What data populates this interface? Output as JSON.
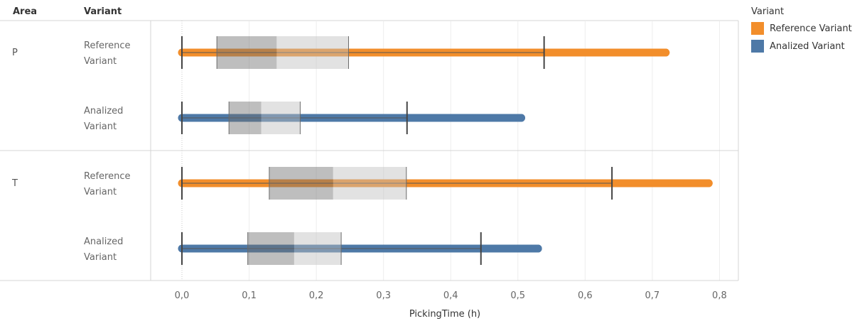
{
  "headers": {
    "area": "Area",
    "variant": "Variant"
  },
  "legend": {
    "title": "Variant",
    "items": [
      {
        "label": "Reference Variant",
        "color": "#f28e2b"
      },
      {
        "label": "Analized Variant",
        "color": "#4e79a7"
      }
    ]
  },
  "chart_data": {
    "type": "box",
    "xlabel": "PickingTime (h)",
    "xlim": [
      -0.048,
      0.82
    ],
    "x_ticks": [
      0.0,
      0.1,
      0.2,
      0.3,
      0.4,
      0.5,
      0.6,
      0.7,
      0.8
    ],
    "x_tick_labels": [
      "0,0",
      "0,1",
      "0,2",
      "0,3",
      "0,4",
      "0,5",
      "0,6",
      "0,7",
      "0,8"
    ],
    "grid": true,
    "legend_position": "right",
    "areas": [
      {
        "area": "P",
        "rows": [
          {
            "variant_line1": "Reference",
            "variant_line2": "Variant",
            "series": "Reference Variant",
            "whisker_low": 0.0,
            "q1": 0.052,
            "median": 0.141,
            "q3": 0.248,
            "whisker_high": 0.539,
            "max": 0.72
          },
          {
            "variant_line1": "Analized",
            "variant_line2": "Variant",
            "series": "Analized Variant",
            "whisker_low": 0.0,
            "q1": 0.07,
            "median": 0.118,
            "q3": 0.176,
            "whisker_high": 0.335,
            "max": 0.505
          }
        ]
      },
      {
        "area": "T",
        "rows": [
          {
            "variant_line1": "Reference",
            "variant_line2": "Variant",
            "series": "Reference Variant",
            "whisker_low": 0.0,
            "q1": 0.13,
            "median": 0.225,
            "q3": 0.334,
            "whisker_high": 0.64,
            "max": 0.784
          },
          {
            "variant_line1": "Analized",
            "variant_line2": "Variant",
            "series": "Analized Variant",
            "whisker_low": 0.0,
            "q1": 0.098,
            "median": 0.167,
            "q3": 0.237,
            "whisker_high": 0.445,
            "max": 0.53
          }
        ]
      }
    ]
  }
}
